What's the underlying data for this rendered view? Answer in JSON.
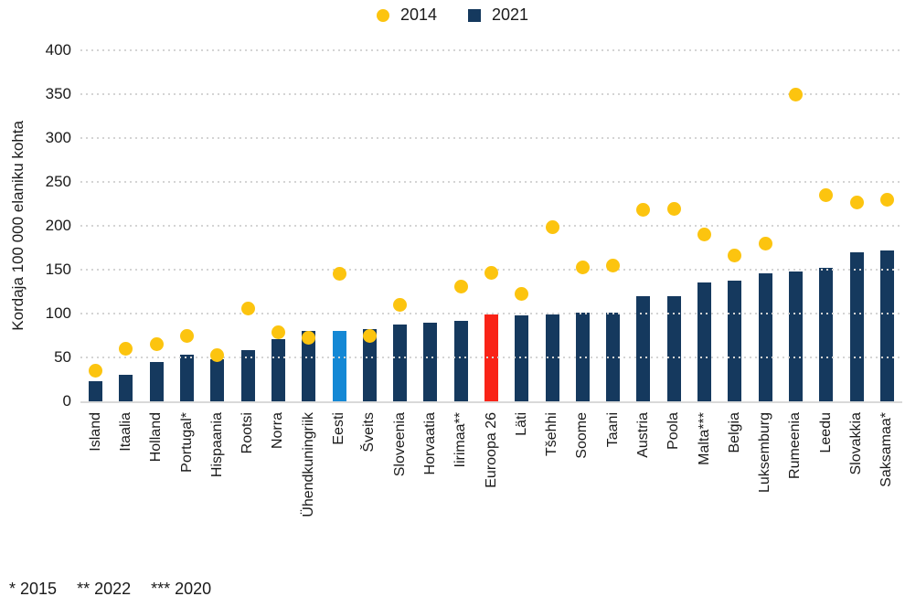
{
  "legend": {
    "items": [
      {
        "label": "2014",
        "marker": "circle",
        "color": "#fcc40f"
      },
      {
        "label": "2021",
        "marker": "square",
        "color": "#15395e"
      }
    ]
  },
  "footnotes": [
    "* 2015",
    "** 2022",
    "*** 2020"
  ],
  "chart_data": {
    "type": "bar",
    "title": "",
    "xlabel": "",
    "ylabel": "Kordaja 100 000 elaniku kohta",
    "ylim": [
      0,
      400
    ],
    "ytick_step": 50,
    "grid": "dotted-horizontal",
    "legend_position": "top-center",
    "categories": [
      "Island",
      "Itaalia",
      "Holland",
      "Portugal*",
      "Hispaania",
      "Rootsi",
      "Norra",
      "Ühendkuningriik",
      "Eesti",
      "Šveits",
      "Sloveenia",
      "Horvaatia",
      "Iirimaa**",
      "Euroopa 26",
      "Läti",
      "Tšehhi",
      "Soome",
      "Taani",
      "Austria",
      "Poola",
      "Malta***",
      "Belgia",
      "Luksemburg",
      "Rumeenia",
      "Leedu",
      "Slovakkia",
      "Saksamaa*"
    ],
    "series": [
      {
        "name": "2014",
        "type": "scatter",
        "color": "#fcc40f",
        "values": [
          35,
          60,
          65,
          74,
          53,
          106,
          79,
          72,
          145,
          74,
          110,
          null,
          131,
          146,
          122,
          198,
          153,
          155,
          218,
          219,
          190,
          166,
          180,
          350,
          235,
          227,
          230
        ]
      },
      {
        "name": "2021",
        "type": "bar",
        "color": "#15395e",
        "values": [
          23,
          30,
          45,
          53,
          48,
          58,
          71,
          80,
          80,
          82,
          88,
          90,
          92,
          99,
          98,
          99,
          101,
          101,
          120,
          120,
          135,
          137,
          146,
          148,
          152,
          170,
          172
        ]
      }
    ],
    "bar_color_overrides": {
      "Eesti": "#1488d5",
      "Euroopa 26": "#f92317"
    }
  },
  "colors": {
    "grid": "#d4d4d4",
    "baseline": "#d9d9d9",
    "text": "#1a1a1a"
  }
}
